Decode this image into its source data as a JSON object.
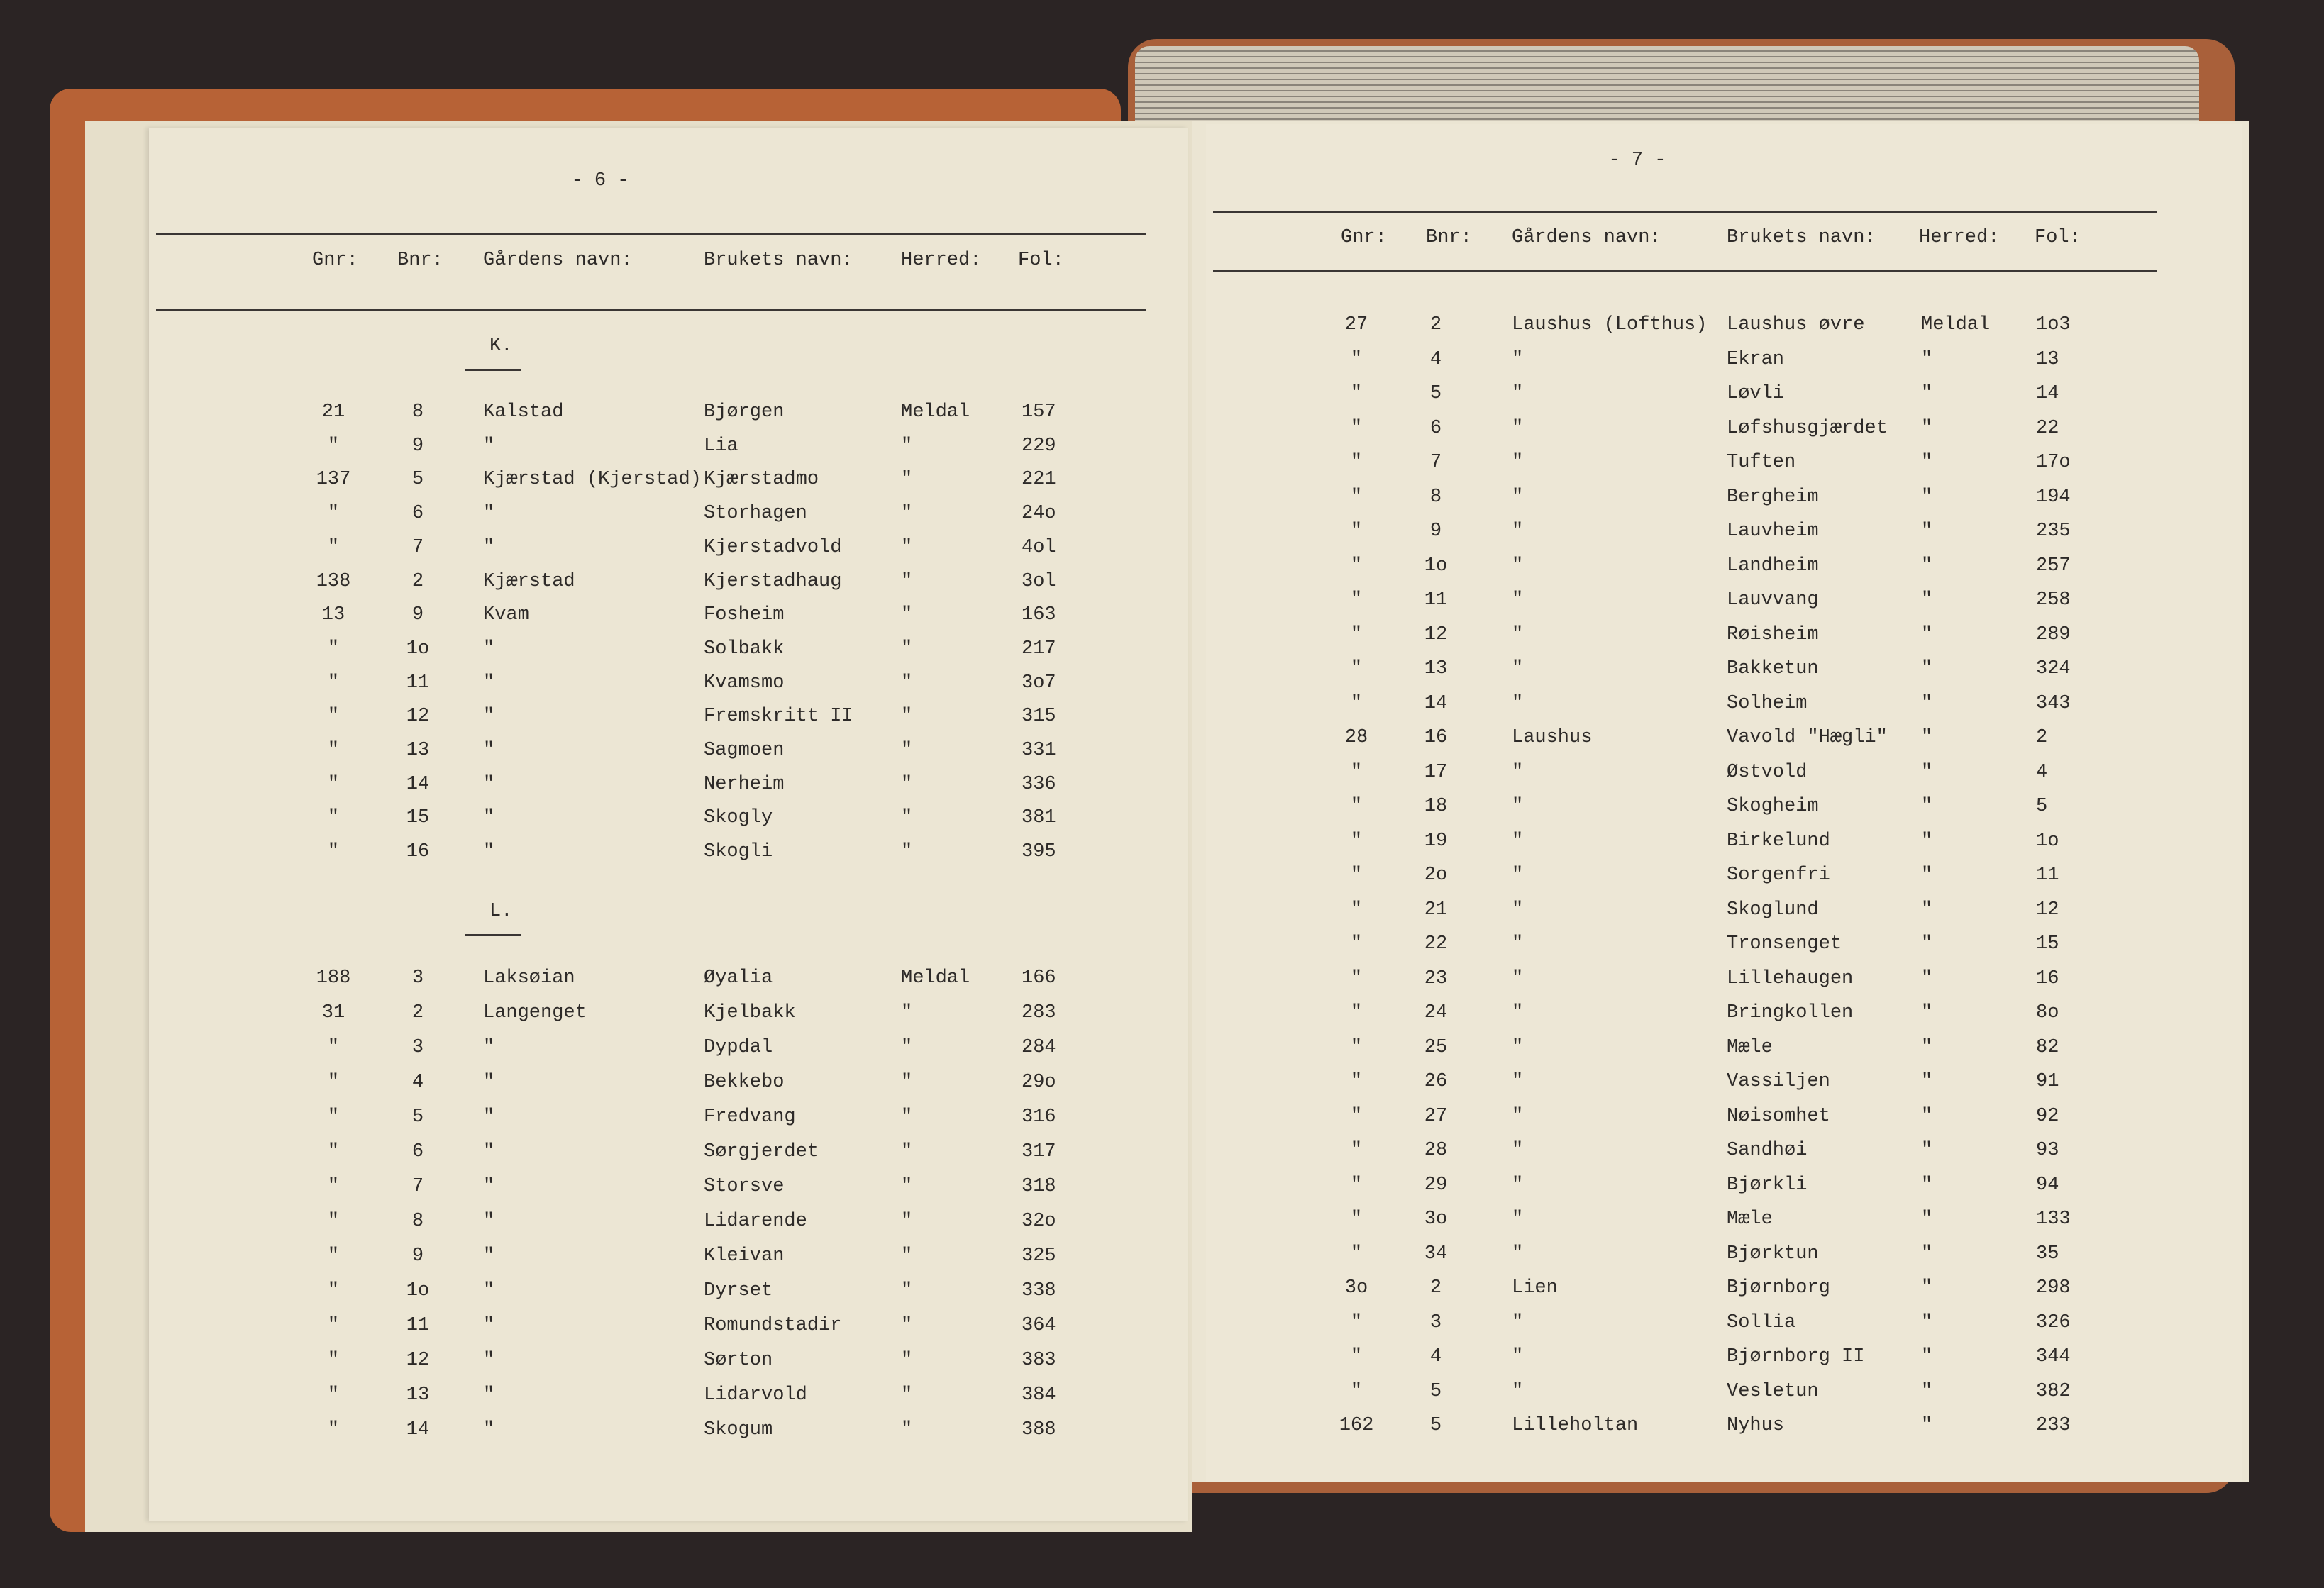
{
  "left_page": {
    "page_number": "- 6 -",
    "headers": [
      "Gnr:",
      "Bnr:",
      "Gårdens navn:",
      "Brukets navn:",
      "Herred:",
      "Fol:"
    ],
    "sections": [
      {
        "heading": "K.",
        "rows": [
          [
            "21",
            "8",
            "Kalstad",
            "Bjørgen",
            "Meldal",
            "157"
          ],
          [
            "\"",
            "9",
            "\"",
            "Lia",
            "\"",
            "229"
          ],
          [
            "137",
            "5",
            "Kjærstad (Kjerstad)",
            "Kjærstadmo",
            "\"",
            "221"
          ],
          [
            "\"",
            "6",
            "\"",
            "Storhagen",
            "\"",
            "24o"
          ],
          [
            "\"",
            "7",
            "\"",
            "Kjerstadvold",
            "\"",
            "4ol"
          ],
          [
            "138",
            "2",
            "Kjærstad",
            "Kjerstadhaug",
            "\"",
            "3ol"
          ],
          [
            "13",
            "9",
            "Kvam",
            "Fosheim",
            "\"",
            "163"
          ],
          [
            "\"",
            "1o",
            "\"",
            "Solbakk",
            "\"",
            "217"
          ],
          [
            "\"",
            "11",
            "\"",
            "Kvamsmo",
            "\"",
            "3o7"
          ],
          [
            "\"",
            "12",
            "\"",
            "Fremskritt II",
            "\"",
            "315"
          ],
          [
            "\"",
            "13",
            "\"",
            "Sagmoen",
            "\"",
            "331"
          ],
          [
            "\"",
            "14",
            "\"",
            "Nerheim",
            "\"",
            "336"
          ],
          [
            "\"",
            "15",
            "\"",
            "Skogly",
            "\"",
            "381"
          ],
          [
            "\"",
            "16",
            "\"",
            "Skogli",
            "\"",
            "395"
          ]
        ]
      },
      {
        "heading": "L.",
        "rows": [
          [
            "188",
            "3",
            "Laksøian",
            "Øyalia",
            "Meldal",
            "166"
          ],
          [
            "31",
            "2",
            "Langenget",
            "Kjelbakk",
            "\"",
            "283"
          ],
          [
            "\"",
            "3",
            "\"",
            "Dypdal",
            "\"",
            "284"
          ],
          [
            "\"",
            "4",
            "\"",
            "Bekkebo",
            "\"",
            "29o"
          ],
          [
            "\"",
            "5",
            "\"",
            "Fredvang",
            "\"",
            "316"
          ],
          [
            "\"",
            "6",
            "\"",
            "Sørgjerdet",
            "\"",
            "317"
          ],
          [
            "\"",
            "7",
            "\"",
            "Storsve",
            "\"",
            "318"
          ],
          [
            "\"",
            "8",
            "\"",
            "Lidarende",
            "\"",
            "32o"
          ],
          [
            "\"",
            "9",
            "\"",
            "Kleivan",
            "\"",
            "325"
          ],
          [
            "\"",
            "1o",
            "\"",
            "Dyrset",
            "\"",
            "338"
          ],
          [
            "\"",
            "11",
            "\"",
            "Romundstadir",
            "\"",
            "364"
          ],
          [
            "\"",
            "12",
            "\"",
            "Sørton",
            "\"",
            "383"
          ],
          [
            "\"",
            "13",
            "\"",
            "Lidarvold",
            "\"",
            "384"
          ],
          [
            "\"",
            "14",
            "\"",
            "Skogum",
            "\"",
            "388"
          ]
        ]
      }
    ]
  },
  "right_page": {
    "page_number": "- 7 -",
    "headers": [
      "Gnr:",
      "Bnr:",
      "Gårdens navn:",
      "Brukets navn:",
      "Herred:",
      "Fol:"
    ],
    "rows": [
      [
        "27",
        "2",
        "Laushus (Lofthus)",
        "Laushus øvre",
        "Meldal",
        "1o3"
      ],
      [
        "\"",
        "4",
        "\"",
        "Ekran",
        "\"",
        "13"
      ],
      [
        "\"",
        "5",
        "\"",
        "Løvli",
        "\"",
        "14"
      ],
      [
        "\"",
        "6",
        "\"",
        "Løfshusgjærdet",
        "\"",
        "22"
      ],
      [
        "\"",
        "7",
        "\"",
        "Tuften",
        "\"",
        "17o"
      ],
      [
        "\"",
        "8",
        "\"",
        "Bergheim",
        "\"",
        "194"
      ],
      [
        "\"",
        "9",
        "\"",
        "Lauvheim",
        "\"",
        "235"
      ],
      [
        "\"",
        "1o",
        "\"",
        "Landheim",
        "\"",
        "257"
      ],
      [
        "\"",
        "11",
        "\"",
        "Lauvvang",
        "\"",
        "258"
      ],
      [
        "\"",
        "12",
        "\"",
        "Røisheim",
        "\"",
        "289"
      ],
      [
        "\"",
        "13",
        "\"",
        "Bakketun",
        "\"",
        "324"
      ],
      [
        "\"",
        "14",
        "\"",
        "Solheim",
        "\"",
        "343"
      ],
      [
        "28",
        "16",
        "Laushus",
        "Vavold \"Hægli\"",
        "\"",
        "2"
      ],
      [
        "\"",
        "17",
        "\"",
        "Østvold",
        "\"",
        "4"
      ],
      [
        "\"",
        "18",
        "\"",
        "Skogheim",
        "\"",
        "5"
      ],
      [
        "\"",
        "19",
        "\"",
        "Birkelund",
        "\"",
        "1o"
      ],
      [
        "\"",
        "2o",
        "\"",
        "Sorgenfri",
        "\"",
        "11"
      ],
      [
        "\"",
        "21",
        "\"",
        "Skoglund",
        "\"",
        "12"
      ],
      [
        "\"",
        "22",
        "\"",
        "Tronsenget",
        "\"",
        "15"
      ],
      [
        "\"",
        "23",
        "\"",
        "Lillehaugen",
        "\"",
        "16"
      ],
      [
        "\"",
        "24",
        "\"",
        "Bringkollen",
        "\"",
        "8o"
      ],
      [
        "\"",
        "25",
        "\"",
        "Mæle",
        "\"",
        "82"
      ],
      [
        "\"",
        "26",
        "\"",
        "Vassiljen",
        "\"",
        "91"
      ],
      [
        "\"",
        "27",
        "\"",
        "Nøisomhet",
        "\"",
        "92"
      ],
      [
        "\"",
        "28",
        "\"",
        "Sandhøi",
        "\"",
        "93"
      ],
      [
        "\"",
        "29",
        "\"",
        "Bjørkli",
        "\"",
        "94"
      ],
      [
        "\"",
        "3o",
        "\"",
        "Mæle",
        "\"",
        "133"
      ],
      [
        "\"",
        "34",
        "\"",
        "Bjørktun",
        "\"",
        "35"
      ],
      [
        "3o",
        "2",
        "Lien",
        "Bjørnborg",
        "\"",
        "298"
      ],
      [
        "\"",
        "3",
        "\"",
        "Sollia",
        "\"",
        "326"
      ],
      [
        "\"",
        "4",
        "\"",
        "Bjørnborg II",
        "\"",
        "344"
      ],
      [
        "\"",
        "5",
        "\"",
        "Vesletun",
        "\"",
        "382"
      ],
      [
        "162",
        "5",
        "Lilleholtan",
        "Nyhus",
        "\"",
        "233"
      ]
    ]
  }
}
